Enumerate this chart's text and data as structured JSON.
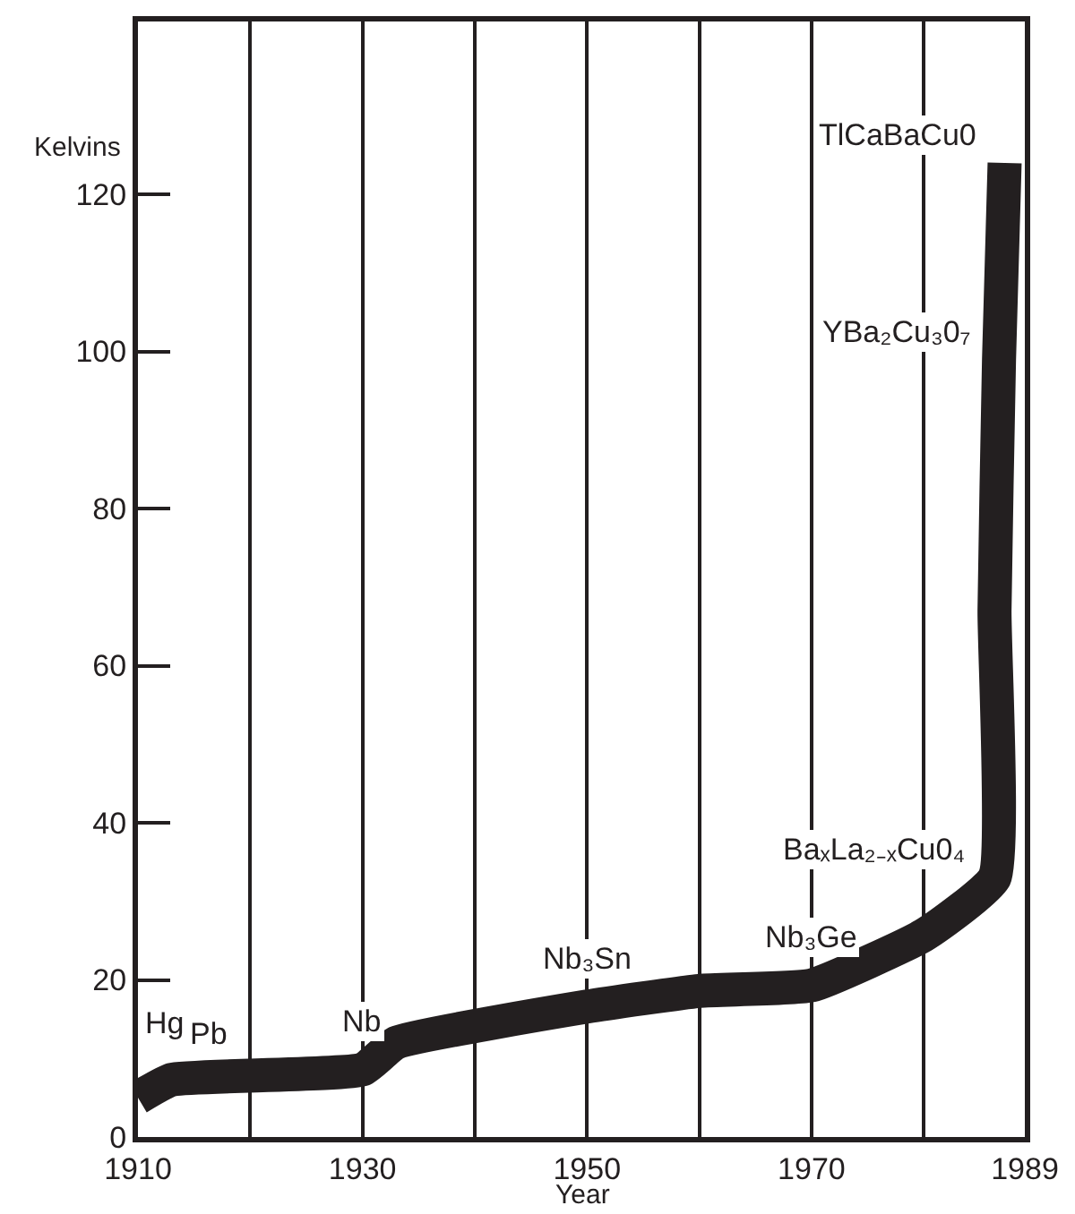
{
  "chart_data": {
    "type": "line",
    "xlabel": "Year",
    "ylabel": "Kelvins",
    "x": [
      1910,
      1913,
      1930,
      1933,
      1950,
      1960,
      1970,
      1980,
      1986.3,
      1986.3,
      1986.7,
      1987.2
    ],
    "series": [
      {
        "color": "#231f20",
        "values": [
          5,
          7.3,
          8.6,
          12,
          16.6,
          18.6,
          19.3,
          25.7,
          33,
          67,
          99,
          124
        ]
      }
    ],
    "xlim": [
      1910,
      1989
    ],
    "ylim": [
      0,
      142
    ],
    "xticks": [
      1910,
      {
        "value": 1920,
        "label": null
      },
      1930,
      {
        "value": 1940,
        "label": null
      },
      1950,
      {
        "value": 1960,
        "label": null
      },
      1970,
      {
        "value": 1980,
        "label": null
      },
      1989
    ],
    "yticks": [
      0,
      20,
      40,
      60,
      80,
      100,
      120
    ],
    "grid": "x",
    "marker": "none",
    "line_style": "solid",
    "annotations": [
      {
        "text": "Hg",
        "x": 1910,
        "y": 5
      },
      {
        "text": "Pb",
        "x": 1913,
        "y": 7.3
      },
      {
        "text": "Nb",
        "x": 1930,
        "y": 8.6
      },
      {
        "text": "Nb₃Sn",
        "x": 1950,
        "y": 16.6
      },
      {
        "text": "Nb₃Ge",
        "x": 1970,
        "y": 19.3
      },
      {
        "text": "BaₓLa₂₋ₓCu0₄",
        "x": 1986.3,
        "y": 33
      },
      {
        "text": "YBa₂Cu₃0₇",
        "x": 1986.7,
        "y": 99
      },
      {
        "text": "TlCaBaCu0",
        "x": 1987.2,
        "y": 124
      }
    ]
  }
}
